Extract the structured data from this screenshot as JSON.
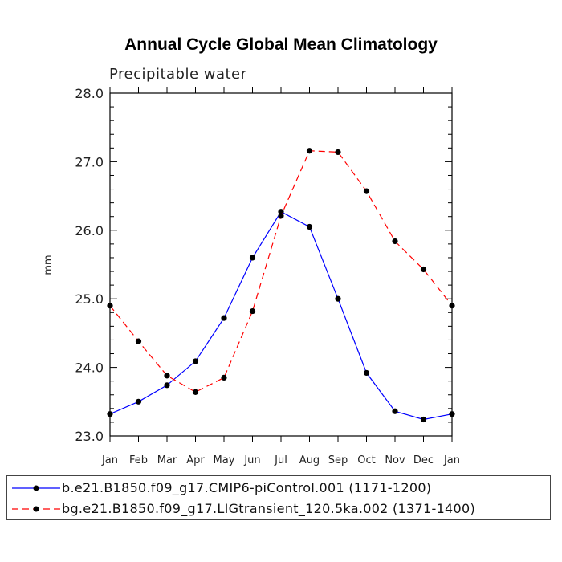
{
  "chart_data": {
    "type": "line",
    "title": "Annual Cycle Global Mean Climatology",
    "subtitle": "Precipitable water",
    "xlabel": "",
    "ylabel": "mm",
    "categories": [
      "Jan",
      "Feb",
      "Mar",
      "Apr",
      "May",
      "Jun",
      "Jul",
      "Aug",
      "Sep",
      "Oct",
      "Nov",
      "Dec",
      "Jan"
    ],
    "ylim": [
      23.0,
      28.0
    ],
    "yticks": [
      "23.0",
      "24.0",
      "25.0",
      "26.0",
      "27.0",
      "28.0"
    ],
    "series": [
      {
        "name": "b.e21.B1850.f09_g17.CMIP6-piControl.001 (1171-1200)",
        "color": "#0000ff",
        "dash": "solid",
        "values": [
          23.32,
          23.5,
          23.74,
          24.09,
          24.72,
          25.6,
          26.27,
          26.05,
          25.0,
          23.92,
          23.36,
          23.24,
          23.32
        ]
      },
      {
        "name": "bg.e21.B1850.f09_g17.LIGtransient_120.5ka.002 (1371-1400)",
        "color": "#ff0000",
        "dash": "dashed",
        "values": [
          24.9,
          24.38,
          23.88,
          23.64,
          23.85,
          24.82,
          26.21,
          27.16,
          27.14,
          26.57,
          25.84,
          25.43,
          24.9
        ]
      }
    ]
  }
}
